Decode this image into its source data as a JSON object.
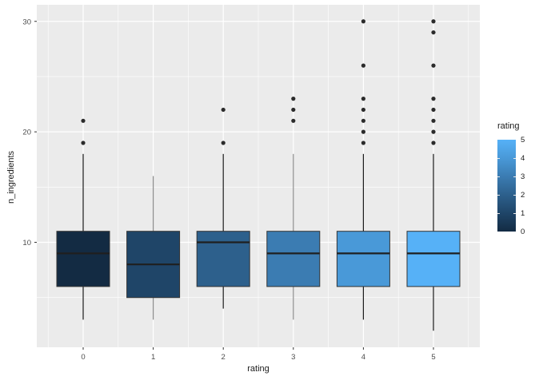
{
  "axes": {
    "x_title": "rating",
    "y_title": "n_ingredients",
    "y_ticks": [
      10,
      20,
      30
    ],
    "y_minor_ticks": [
      5,
      15,
      25
    ],
    "categories": [
      "0",
      "1",
      "2",
      "3",
      "4",
      "5"
    ]
  },
  "legend": {
    "title": "rating",
    "tick_labels": [
      "5",
      "4",
      "3",
      "2",
      "1",
      "0"
    ],
    "gradient_low_to_high": [
      "#132B43",
      "#1F4568",
      "#2D608C",
      "#3B7CB2",
      "#4999D8",
      "#56B1F7"
    ]
  },
  "colors": {
    "panel_bg": "#EBEBEB",
    "grid": "#FFFFFF",
    "box_border": "#333333",
    "median": "#1F1F1F",
    "outlier": "#2B2B2B",
    "tick_text": "#4D4D4D",
    "tick_mark": "#333333"
  },
  "chart_data": {
    "type": "boxplot",
    "title": "",
    "xlabel": "rating",
    "ylabel": "n_ingredients",
    "ylim": [
      0.5,
      31.5
    ],
    "x": [
      0,
      1,
      2,
      3,
      4,
      5
    ],
    "grid": true,
    "legend_position": "right",
    "series": [
      {
        "category": "0",
        "whisker_low": 3,
        "q1": 6,
        "median": 9,
        "q3": 11,
        "whisker_high": 18,
        "outliers": [
          19,
          21
        ],
        "fill": "#132B43",
        "whisker_color": "#1A1A1A"
      },
      {
        "category": "1",
        "whisker_low": 3,
        "q1": 5,
        "median": 8,
        "q3": 11,
        "whisker_high": 16,
        "outliers": [],
        "fill": "#1F4568",
        "whisker_color": "#8C8C8C"
      },
      {
        "category": "2",
        "whisker_low": 4,
        "q1": 6,
        "median": 10,
        "q3": 11,
        "whisker_high": 18,
        "outliers": [
          19,
          22
        ],
        "fill": "#2D608C",
        "whisker_color": "#1A1A1A"
      },
      {
        "category": "3",
        "whisker_low": 3,
        "q1": 6,
        "median": 9,
        "q3": 11,
        "whisker_high": 18,
        "outliers": [
          21,
          22,
          23
        ],
        "fill": "#3B7CB2",
        "whisker_color": "#8C8C8C"
      },
      {
        "category": "4",
        "whisker_low": 3,
        "q1": 6,
        "median": 9,
        "q3": 11,
        "whisker_high": 18,
        "outliers": [
          19,
          20,
          21,
          22,
          23,
          26,
          30
        ],
        "fill": "#4999D8",
        "whisker_color": "#1A1A1A"
      },
      {
        "category": "5",
        "whisker_low": 2,
        "q1": 6,
        "median": 9,
        "q3": 11,
        "whisker_high": 18,
        "outliers": [
          19,
          20,
          21,
          22,
          23,
          26,
          29,
          30
        ],
        "fill": "#56B1F7",
        "whisker_color": "#1A1A1A"
      }
    ]
  }
}
